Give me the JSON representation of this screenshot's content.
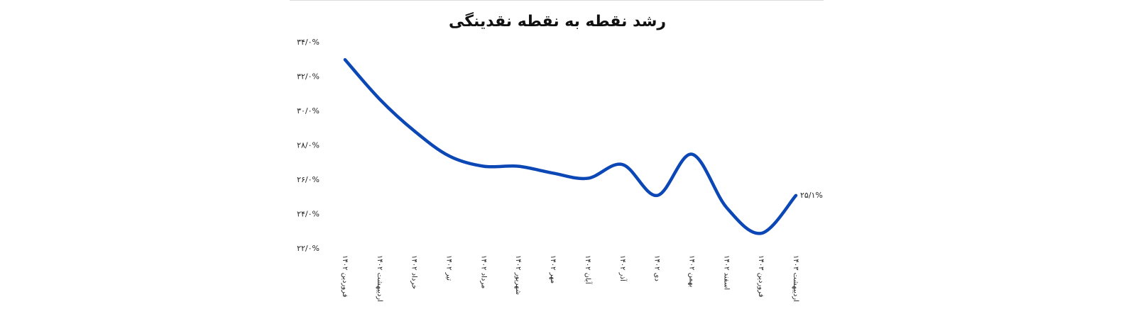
{
  "chart_data": {
    "type": "line",
    "title": "رشد نقطه به نقطه نقدینگی",
    "categories": [
      "فروردین ۱۴۰۲",
      "اردیبهشت ۱۴۰۲",
      "خرداد ۱۴۰۲",
      "تیر ۱۴۰۲",
      "مرداد ۱۴۰۲",
      "شهریور ۱۴۰۲",
      "مهر ۱۴۰۲",
      "آبان ۱۴۰۲",
      "آذر ۱۴۰۲",
      "دی ۱۴۰۲",
      "بهمن ۱۴۰۲",
      "اسفند ۱۴۰۲",
      "فروردین ۱۴۰۳",
      "اردیبهشت ۱۴۰۳"
    ],
    "values": [
      33.0,
      30.7,
      28.85,
      27.4,
      26.8,
      26.8,
      26.4,
      26.1,
      26.9,
      25.1,
      27.5,
      24.4,
      22.9,
      25.1
    ],
    "value_labels": [
      null,
      null,
      null,
      null,
      null,
      null,
      null,
      null,
      null,
      null,
      null,
      null,
      null,
      "۲۵/۱%"
    ],
    "color": "#0b47b5",
    "ylim": [
      22,
      34
    ],
    "yticks": [
      {
        "value": 22,
        "label": "۲۲/۰%"
      },
      {
        "value": 24,
        "label": "۲۴/۰%"
      },
      {
        "value": 26,
        "label": "۲۶/۰%"
      },
      {
        "value": 28,
        "label": "۲۸/۰%"
      },
      {
        "value": 30,
        "label": "۳۰/۰%"
      },
      {
        "value": 32,
        "label": "۳۲/۰%"
      },
      {
        "value": 34,
        "label": "۳۴/۰%"
      }
    ],
    "grid": false
  }
}
